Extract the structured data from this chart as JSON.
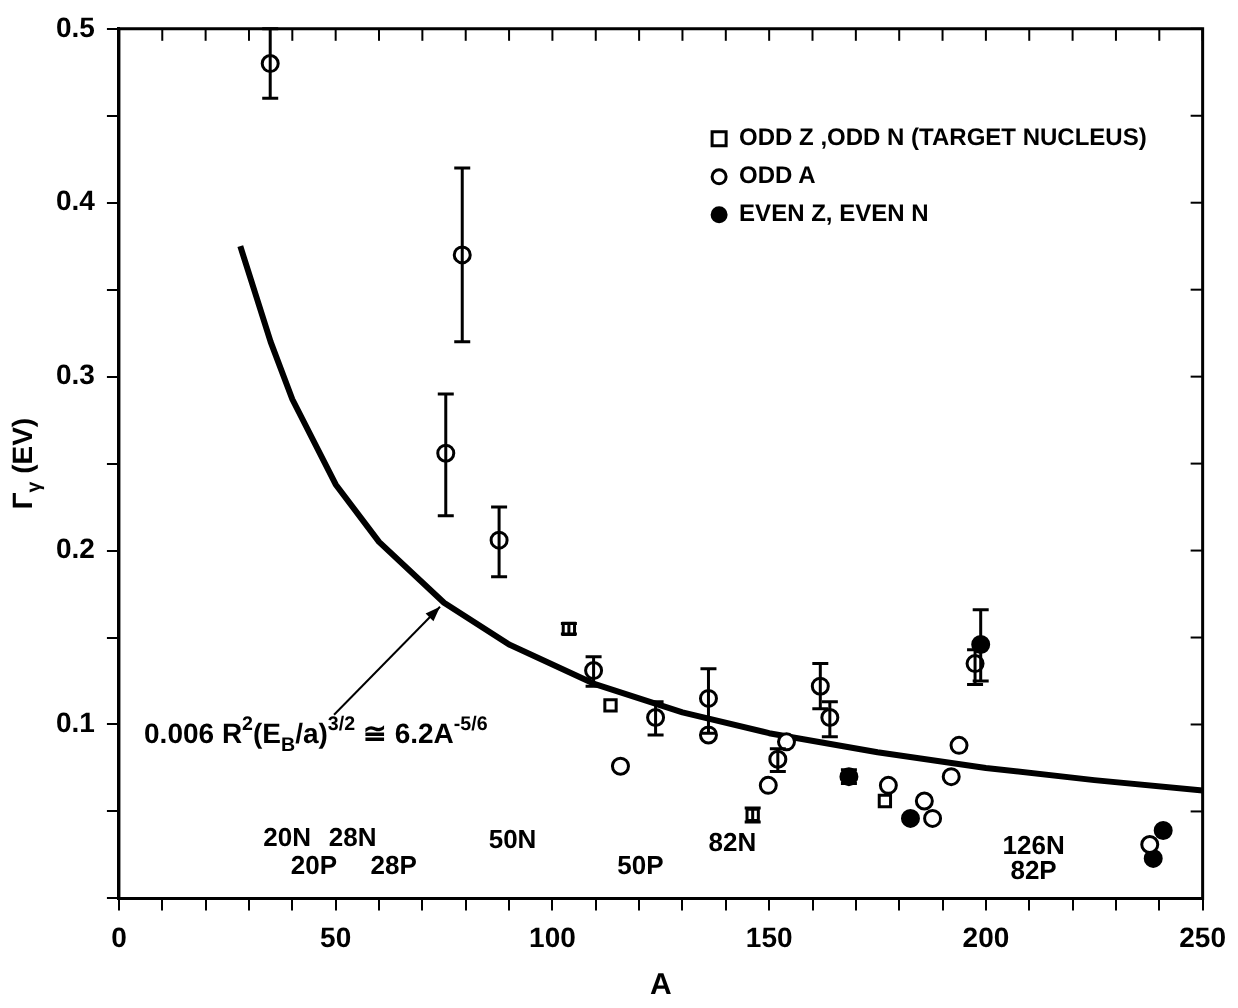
{
  "chart_data": {
    "type": "scatter",
    "xlabel": "A",
    "ylabel": "Γ$_{γ}$ (EV)",
    "xlim": [
      0,
      250
    ],
    "ylim": [
      0,
      0.5
    ],
    "xticks": [
      0,
      {
        "value": 10,
        "label": null
      },
      {
        "value": 20,
        "label": null
      },
      {
        "value": 30,
        "label": null
      },
      {
        "value": 40,
        "label": null
      },
      50,
      {
        "value": 60,
        "label": null
      },
      {
        "value": 70,
        "label": null
      },
      {
        "value": 80,
        "label": null
      },
      {
        "value": 90,
        "label": null
      },
      100,
      {
        "value": 110,
        "label": null
      },
      {
        "value": 120,
        "label": null
      },
      {
        "value": 130,
        "label": null
      },
      {
        "value": 140,
        "label": null
      },
      150,
      {
        "value": 160,
        "label": null
      },
      {
        "value": 170,
        "label": null
      },
      {
        "value": 180,
        "label": null
      },
      {
        "value": 190,
        "label": null
      },
      200,
      {
        "value": 210,
        "label": null
      },
      {
        "value": 220,
        "label": null
      },
      {
        "value": 230,
        "label": null
      },
      {
        "value": 240,
        "label": null
      },
      250
    ],
    "yticks": [
      {
        "value": 0,
        "label": null
      },
      {
        "value": 0.05,
        "label": null
      },
      0.1,
      {
        "value": 0.15,
        "label": null
      },
      0.2,
      {
        "value": 0.25,
        "label": null
      },
      0.3,
      {
        "value": 0.35,
        "label": null
      },
      0.4,
      {
        "value": 0.45,
        "label": null
      },
      0.5
    ],
    "legend": "top right",
    "series": [
      {
        "name": "ODD Z ,ODD N (TARGET NUCLEUS)",
        "color": "#000000",
        "marker": "square",
        "x": [
          103.8,
          113.4,
          146.2,
          176.7
        ],
        "values": [
          0.155,
          0.111,
          0.048,
          0.056
        ],
        "errors": [
          [
            0.152,
            0.158
          ],
          null,
          [
            0.044,
            0.052
          ],
          null
        ]
      },
      {
        "name": "ODD A",
        "color": "#000000",
        "marker": "circle",
        "x": [
          34.9,
          79.2,
          75.4,
          87.7,
          109.5,
          115.7,
          123.8,
          136,
          136,
          149.8,
          152,
          154,
          161.8,
          164,
          177.5,
          185.8,
          187.7,
          192,
          193.8,
          197.5,
          237.8
        ],
        "values": [
          0.48,
          0.37,
          0.256,
          0.206,
          0.131,
          0.076,
          0.104,
          0.115,
          0.094,
          0.065,
          0.08,
          0.09,
          0.122,
          0.104,
          0.065,
          0.056,
          0.046,
          0.07,
          0.088,
          0.135,
          0.031
        ],
        "errors": [
          [
            0.46,
            0.5
          ],
          [
            0.32,
            0.42
          ],
          [
            0.22,
            0.29
          ],
          [
            0.185,
            0.225
          ],
          [
            0.122,
            0.139
          ],
          null,
          [
            0.094,
            0.113
          ],
          [
            0.095,
            0.132
          ],
          null,
          null,
          [
            0.073,
            0.086
          ],
          null,
          [
            0.109,
            0.135
          ],
          [
            0.093,
            0.113
          ],
          null,
          null,
          null,
          null,
          null,
          [
            0.123,
            0.143
          ],
          null
        ]
      },
      {
        "name": "EVEN Z, EVEN N",
        "color": "#000000",
        "colors": [
          "#000000",
          "#000000",
          "#000000",
          "#000000",
          "#000000"
        ],
        "x": [
          168.4,
          182.6,
          198.8,
          238.6,
          240.9
        ],
        "values": [
          0.07,
          0.046,
          0.146,
          0.023,
          0.039
        ],
        "errors": [
          [
            0.066,
            0.074
          ],
          null,
          [
            0.125,
            0.166
          ],
          null,
          null
        ]
      },
      {
        "type": "line",
        "color": "#000000",
        "marker": "none",
        "x": [
          28,
          35,
          40,
          50,
          60,
          75,
          90,
          110,
          130,
          150,
          175,
          200,
          225,
          250
        ],
        "values": [
          0.375,
          0.32,
          0.287,
          0.238,
          0.205,
          0.17,
          0.146,
          0.123,
          0.107,
          0.095,
          0.084,
          0.075,
          0.068,
          0.062
        ]
      }
    ],
    "annotations": [
      {
        "text": "0.006 R$^{2}$(E$_{B}$/a)$^{3/2}$ ≅ 6.2A$^{-5/6}$",
        "x": 75,
        "y": 0.17
      },
      "20N",
      "28N",
      "20P",
      "28P",
      "50N",
      "50P",
      "82N",
      "126N",
      "82P"
    ]
  }
}
